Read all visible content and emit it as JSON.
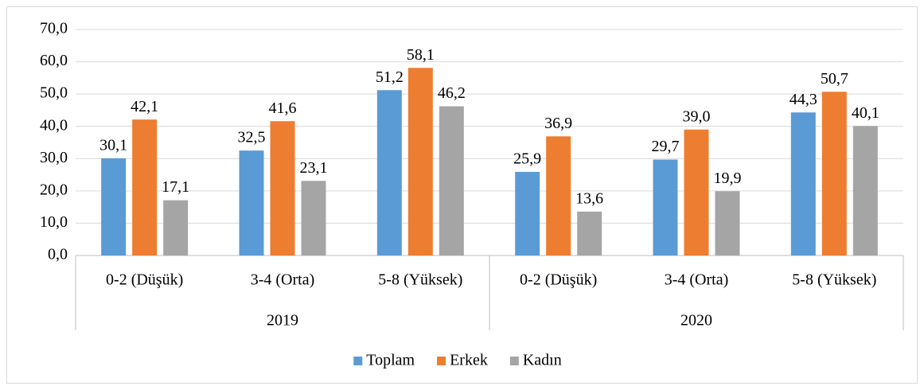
{
  "chart_data": {
    "type": "bar",
    "categories": [
      "0-2 (Düşük)",
      "3-4 (Orta)",
      "5-8 (Yüksek)",
      "0-2 (Düşük)",
      "3-4 (Orta)",
      "5-8 (Yüksek)"
    ],
    "category_groups": [
      "2019",
      "2020"
    ],
    "series": [
      {
        "name": "Toplam",
        "color": "#5b9bd5",
        "values": [
          30.1,
          32.5,
          51.2,
          25.9,
          29.7,
          44.3
        ],
        "value_labels": [
          "30,1",
          "32,5",
          "51,2",
          "25,9",
          "29,7",
          "44,3"
        ]
      },
      {
        "name": "Erkek",
        "color": "#ed7d31",
        "values": [
          42.1,
          41.6,
          58.1,
          36.9,
          39.0,
          50.7
        ],
        "value_labels": [
          "42,1",
          "41,6",
          "58,1",
          "36,9",
          "39,0",
          "50,7"
        ]
      },
      {
        "name": "Kadın",
        "color": "#a5a5a5",
        "values": [
          17.1,
          23.1,
          46.2,
          13.6,
          19.9,
          40.1
        ],
        "value_labels": [
          "17,1",
          "23,1",
          "46,2",
          "13,6",
          "19,9",
          "40,1"
        ]
      }
    ],
    "ylim": [
      0,
      70
    ],
    "yticks": [
      {
        "value": 0,
        "label": "0,0"
      },
      {
        "value": 10,
        "label": "10,0"
      },
      {
        "value": 20,
        "label": "20,0"
      },
      {
        "value": 30,
        "label": "30,0"
      },
      {
        "value": 40,
        "label": "40,0"
      },
      {
        "value": 50,
        "label": "50,0"
      },
      {
        "value": 60,
        "label": "60,0"
      },
      {
        "value": 70,
        "label": "70,0"
      }
    ],
    "grid": true,
    "legend": "bottom"
  }
}
